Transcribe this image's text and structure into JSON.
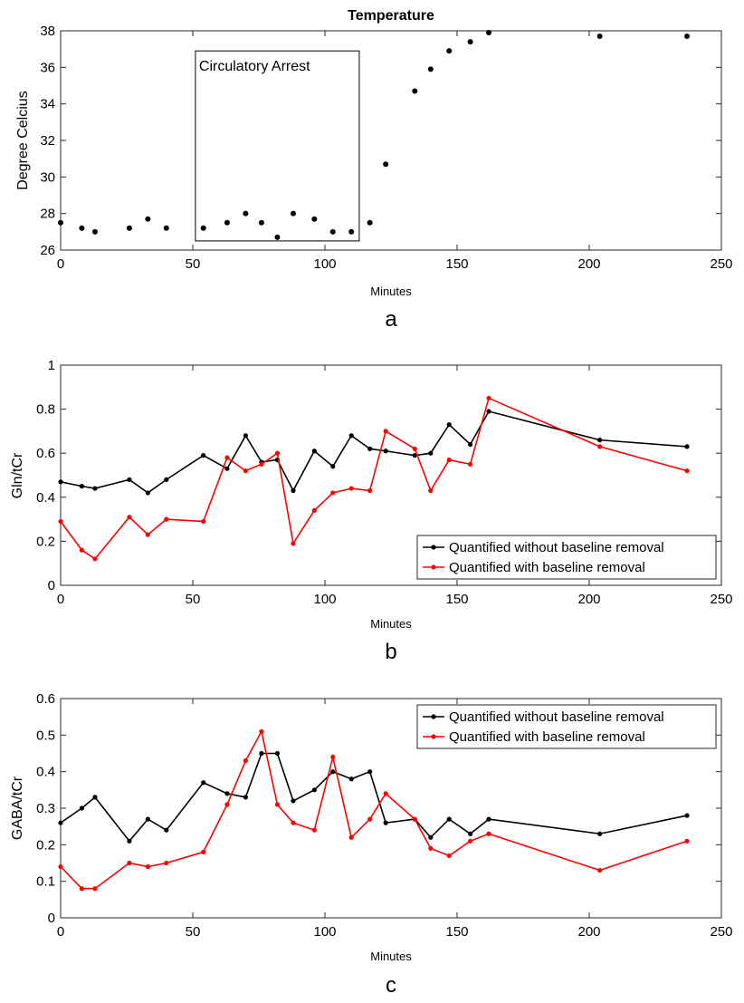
{
  "chart_data": [
    {
      "type": "scatter",
      "title": "Temperature",
      "xlabel": "Minutes",
      "ylabel": "Degree Celcius",
      "panel_label": "a",
      "xlim": [
        0,
        250
      ],
      "ylim": [
        26,
        38
      ],
      "xticks": [
        0,
        50,
        100,
        150,
        200,
        250
      ],
      "yticks": [
        26,
        28,
        30,
        32,
        34,
        36,
        38
      ],
      "annotation": {
        "text": "Circulatory Arrest",
        "x_range": [
          51,
          113
        ],
        "y_range": [
          26.5,
          36.9
        ]
      },
      "series": [
        {
          "name": "Temperature",
          "color": "#000000",
          "x": [
            0,
            8,
            13,
            26,
            33,
            40,
            54,
            63,
            70,
            76,
            82,
            88,
            96,
            103,
            110,
            117,
            123,
            134,
            140,
            147,
            155,
            162,
            204,
            237
          ],
          "y": [
            27.5,
            27.2,
            27.0,
            27.2,
            27.7,
            27.2,
            27.2,
            27.5,
            28.0,
            27.5,
            26.7,
            28.0,
            27.7,
            27.0,
            27.0,
            27.5,
            30.7,
            34.7,
            35.9,
            36.9,
            37.4,
            37.9,
            37.7,
            37.7
          ]
        }
      ]
    },
    {
      "type": "line",
      "title": "",
      "xlabel": "Minutes",
      "ylabel": "Gln/tCr",
      "panel_label": "b",
      "xlim": [
        0,
        250
      ],
      "ylim": [
        0,
        1
      ],
      "xticks": [
        0,
        50,
        100,
        150,
        200,
        250
      ],
      "yticks": [
        0,
        0.2,
        0.4,
        0.6,
        0.8,
        1
      ],
      "ytick_labels": [
        "0",
        "0.2",
        "0.4",
        "0.6",
        "0.8",
        "1"
      ],
      "legend_position": "bottom-right",
      "series": [
        {
          "name": "Quantified without baseline removal",
          "color": "#000000",
          "x": [
            0,
            8,
            13,
            26,
            33,
            40,
            54,
            63,
            70,
            76,
            82,
            88,
            96,
            103,
            110,
            117,
            123,
            134,
            140,
            147,
            155,
            162,
            204,
            237
          ],
          "y": [
            0.47,
            0.45,
            0.44,
            0.48,
            0.42,
            0.48,
            0.59,
            0.53,
            0.68,
            0.56,
            0.57,
            0.43,
            0.61,
            0.54,
            0.68,
            0.62,
            0.61,
            0.59,
            0.6,
            0.73,
            0.64,
            0.79,
            0.66,
            0.63
          ]
        },
        {
          "name": "Quantified with baseline removal",
          "color": "#ff0000",
          "x": [
            0,
            8,
            13,
            26,
            33,
            40,
            54,
            63,
            70,
            76,
            82,
            88,
            96,
            103,
            110,
            117,
            123,
            134,
            140,
            147,
            155,
            162,
            204,
            237
          ],
          "y": [
            0.29,
            0.16,
            0.12,
            0.31,
            0.23,
            0.3,
            0.29,
            0.58,
            0.52,
            0.55,
            0.6,
            0.19,
            0.34,
            0.42,
            0.44,
            0.43,
            0.7,
            0.62,
            0.43,
            0.57,
            0.55,
            0.85,
            0.63,
            0.52
          ]
        }
      ]
    },
    {
      "type": "line",
      "title": "",
      "xlabel": "Minutes",
      "ylabel": "GABA/tCr",
      "panel_label": "c",
      "xlim": [
        0,
        250
      ],
      "ylim": [
        0,
        0.6
      ],
      "xticks": [
        0,
        50,
        100,
        150,
        200,
        250
      ],
      "yticks": [
        0,
        0.1,
        0.2,
        0.3,
        0.4,
        0.5,
        0.6
      ],
      "ytick_labels": [
        "0",
        "0.1",
        "0.2",
        "0.3",
        "0.4",
        "0.5",
        "0.6"
      ],
      "legend_position": "top-right",
      "series": [
        {
          "name": "Quantified without baseline removal",
          "color": "#000000",
          "x": [
            0,
            8,
            13,
            26,
            33,
            40,
            54,
            63,
            70,
            76,
            82,
            88,
            96,
            103,
            110,
            117,
            123,
            134,
            140,
            147,
            155,
            162,
            204,
            237
          ],
          "y": [
            0.26,
            0.3,
            0.33,
            0.21,
            0.27,
            0.24,
            0.37,
            0.34,
            0.33,
            0.45,
            0.45,
            0.32,
            0.35,
            0.4,
            0.38,
            0.4,
            0.26,
            0.27,
            0.22,
            0.27,
            0.23,
            0.27,
            0.23,
            0.28
          ]
        },
        {
          "name": "Quantified with baseline removal",
          "color": "#ff0000",
          "x": [
            0,
            8,
            13,
            26,
            33,
            40,
            54,
            63,
            70,
            76,
            82,
            88,
            96,
            103,
            110,
            117,
            123,
            134,
            140,
            147,
            155,
            162,
            204,
            237
          ],
          "y": [
            0.14,
            0.08,
            0.08,
            0.15,
            0.14,
            0.15,
            0.18,
            0.31,
            0.43,
            0.51,
            0.31,
            0.26,
            0.24,
            0.44,
            0.22,
            0.27,
            0.34,
            0.27,
            0.19,
            0.17,
            0.21,
            0.23,
            0.13,
            0.21
          ]
        }
      ]
    }
  ]
}
